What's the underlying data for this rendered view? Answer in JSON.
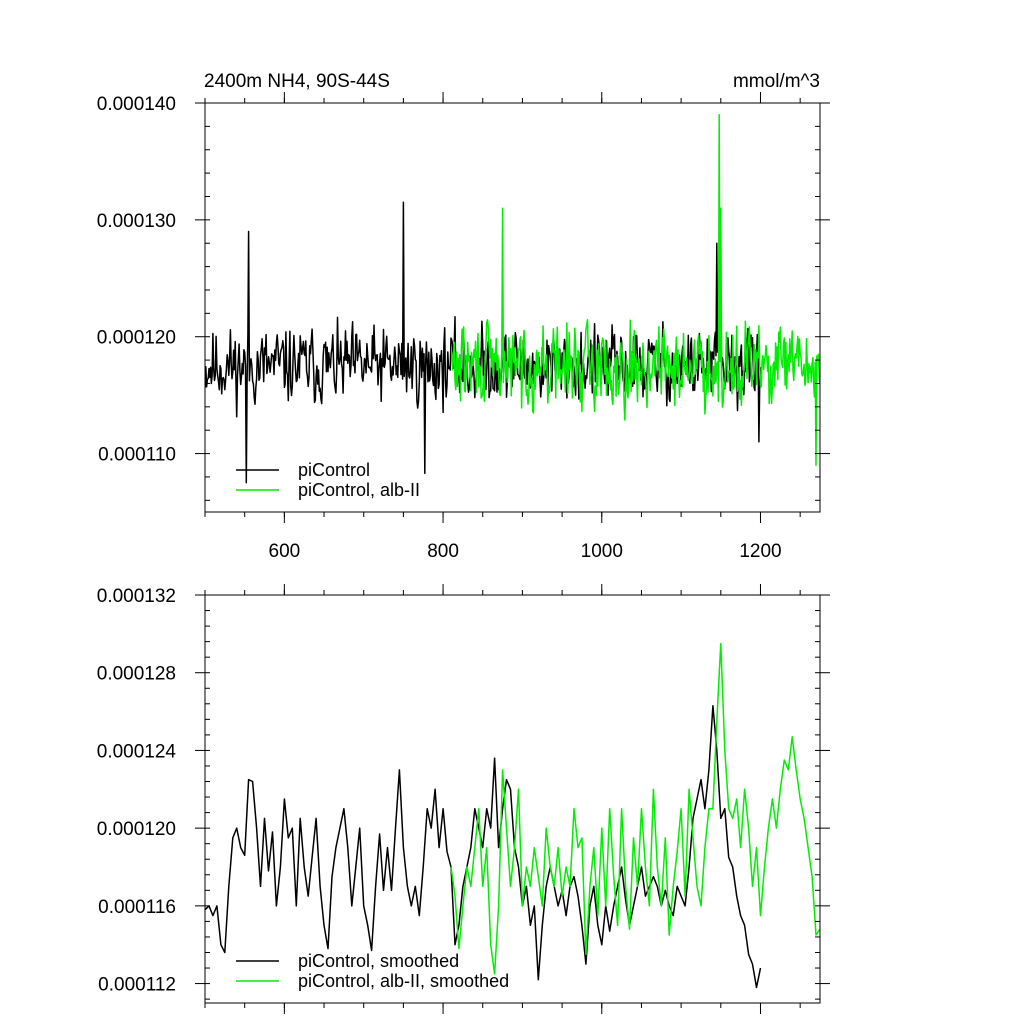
{
  "title_left": "2400m NH4, 90S-44S",
  "title_right": "mmol/m^3",
  "colors": {
    "control": "#000000",
    "alb": "#00ee00",
    "frame": "#000000"
  },
  "chart_data": [
    {
      "type": "line",
      "title": "2400m NH4, 90S-44S",
      "units": "mmol/m^3",
      "xlim": [
        500,
        1275
      ],
      "ylim": [
        0.000105,
        0.00014
      ],
      "xticks": [
        600,
        800,
        1000,
        1200
      ],
      "xtick_labels": [
        "600",
        "800",
        "1000",
        "1200"
      ],
      "yticks": [
        0.00011,
        0.00012,
        0.00013,
        0.00014
      ],
      "ytick_labels": [
        "0.000110",
        "0.000120",
        "0.000130",
        "0.000140"
      ],
      "legend_position": "bottom-left",
      "series": [
        {
          "name": "piControl",
          "color": "#000000",
          "x_start": 500,
          "x_end": 1200,
          "mean": 0.0001175,
          "amplitude": 2.8e-06,
          "seed": 11,
          "keypoints": [
            [
              552,
              0.0001075
            ],
            [
              555,
              0.000129
            ],
            [
              750,
              0.0001315
            ],
            [
              777,
              0.0001083
            ],
            [
              1145,
              0.000128
            ],
            [
              1150,
              0.000124
            ],
            [
              1198,
              0.000111
            ]
          ]
        },
        {
          "name": "piControl, alb-II",
          "color": "#00ee00",
          "x_start": 810,
          "x_end": 1275,
          "mean": 0.0001175,
          "amplitude": 3e-06,
          "seed": 29,
          "keypoints": [
            [
              875,
              0.000131
            ],
            [
              1148,
              0.000139
            ],
            [
              1150,
              0.000131
            ],
            [
              1270,
              0.000109
            ]
          ]
        }
      ]
    },
    {
      "type": "line",
      "xlim": [
        500,
        1275
      ],
      "ylim": [
        0.000111,
        0.000132
      ],
      "xticks": [
        600,
        800,
        1000,
        1200
      ],
      "yticks": [
        0.000112,
        0.000116,
        0.00012,
        0.000124,
        0.000128,
        0.000132
      ],
      "ytick_labels": [
        "0.000112",
        "0.000116",
        "0.000120",
        "0.000124",
        "0.000128",
        "0.000132"
      ],
      "legend_position": "bottom-left",
      "series": [
        {
          "name": "piControl, smoothed",
          "color": "#000000",
          "x_start": 500,
          "x_end": 1200,
          "points": [
            [
              500,
              0.0001158
            ],
            [
              505,
              0.000116
            ],
            [
              510,
              0.0001155
            ],
            [
              515,
              0.000116
            ],
            [
              520,
              0.000114
            ],
            [
              525,
              0.0001136
            ],
            [
              530,
              0.000117
            ],
            [
              535,
              0.0001195
            ],
            [
              540,
              0.00012
            ],
            [
              545,
              0.000119
            ],
            [
              550,
              0.0001186
            ],
            [
              555,
              0.0001225
            ],
            [
              560,
              0.0001224
            ],
            [
              565,
              0.00012
            ],
            [
              570,
              0.000117
            ],
            [
              575,
              0.0001205
            ],
            [
              580,
              0.0001178
            ],
            [
              585,
              0.0001198
            ],
            [
              590,
              0.000116
            ],
            [
              595,
              0.000118
            ],
            [
              600,
              0.0001215
            ],
            [
              605,
              0.0001195
            ],
            [
              610,
              0.00012
            ],
            [
              615,
              0.000116
            ],
            [
              620,
              0.0001205
            ],
            [
              625,
              0.000118
            ],
            [
              630,
              0.0001165
            ],
            [
              635,
              0.0001185
            ],
            [
              640,
              0.0001205
            ],
            [
              645,
              0.000117
            ],
            [
              650,
              0.000115
            ],
            [
              655,
              0.0001138
            ],
            [
              660,
              0.0001175
            ],
            [
              665,
              0.000119
            ],
            [
              670,
              0.00012
            ],
            [
              675,
              0.000121
            ],
            [
              680,
              0.000119
            ],
            [
              685,
              0.000116
            ],
            [
              690,
              0.000118
            ],
            [
              695,
              0.00012
            ],
            [
              700,
              0.000116
            ],
            [
              705,
              0.000115
            ],
            [
              710,
              0.0001137
            ],
            [
              715,
              0.000117
            ],
            [
              720,
              0.0001197
            ],
            [
              725,
              0.0001168
            ],
            [
              730,
              0.000119
            ],
            [
              735,
              0.0001168
            ],
            [
              740,
              0.00012
            ],
            [
              745,
              0.000123
            ],
            [
              750,
              0.000119
            ],
            [
              755,
              0.000117
            ],
            [
              760,
              0.000116
            ],
            [
              765,
              0.000117
            ],
            [
              770,
              0.0001155
            ],
            [
              775,
              0.000118
            ],
            [
              780,
              0.000121
            ],
            [
              785,
              0.00012
            ],
            [
              790,
              0.000122
            ],
            [
              795,
              0.000119
            ],
            [
              800,
              0.000121
            ],
            [
              805,
              0.0001188
            ],
            [
              810,
              0.000118
            ],
            [
              815,
              0.000114
            ],
            [
              820,
              0.000115
            ],
            [
              825,
              0.000117
            ],
            [
              830,
              0.000118
            ],
            [
              835,
              0.000119
            ],
            [
              840,
              0.000121
            ],
            [
              845,
              0.00012
            ],
            [
              850,
              0.000119
            ],
            [
              855,
              0.000121
            ],
            [
              860,
              0.00012
            ],
            [
              865,
              0.0001236
            ],
            [
              870,
              0.000119
            ],
            [
              875,
              0.000121
            ],
            [
              880,
              0.0001225
            ],
            [
              885,
              0.000122
            ],
            [
              890,
              0.000119
            ],
            [
              895,
              0.000118
            ],
            [
              900,
              0.000116
            ],
            [
              905,
              0.000117
            ],
            [
              910,
              0.000115
            ],
            [
              915,
              0.000116
            ],
            [
              920,
              0.0001122
            ],
            [
              925,
              0.000115
            ],
            [
              930,
              0.000117
            ],
            [
              935,
              0.000118
            ],
            [
              940,
              0.000117
            ],
            [
              945,
              0.000116
            ],
            [
              950,
              0.0001168
            ],
            [
              955,
              0.0001155
            ],
            [
              960,
              0.000117
            ],
            [
              965,
              0.0001175
            ],
            [
              970,
              0.0001165
            ],
            [
              975,
              0.000115
            ],
            [
              980,
              0.000113
            ],
            [
              985,
              0.000116
            ],
            [
              990,
              0.000117
            ],
            [
              995,
              0.000115
            ],
            [
              1000,
              0.000114
            ],
            [
              1005,
              0.000116
            ],
            [
              1010,
              0.0001147
            ],
            [
              1015,
              0.000116
            ],
            [
              1020,
              0.000117
            ],
            [
              1025,
              0.000118
            ],
            [
              1030,
              0.0001163
            ],
            [
              1035,
              0.000115
            ],
            [
              1040,
              0.000116
            ],
            [
              1045,
              0.000117
            ],
            [
              1050,
              0.000118
            ],
            [
              1055,
              0.0001165
            ],
            [
              1060,
              0.000117
            ],
            [
              1065,
              0.0001175
            ],
            [
              1070,
              0.000117
            ],
            [
              1075,
              0.000116
            ],
            [
              1080,
              0.0001168
            ],
            [
              1085,
              0.000116
            ],
            [
              1090,
              0.0001155
            ],
            [
              1095,
              0.000117
            ],
            [
              1100,
              0.0001165
            ],
            [
              1105,
              0.000116
            ],
            [
              1110,
              0.000118
            ],
            [
              1115,
              0.0001205
            ],
            [
              1120,
              0.0001215
            ],
            [
              1125,
              0.0001225
            ],
            [
              1130,
              0.000121
            ],
            [
              1135,
              0.000123
            ],
            [
              1140,
              0.0001263
            ],
            [
              1145,
              0.000124
            ],
            [
              1150,
              0.0001205
            ],
            [
              1155,
              0.000121
            ],
            [
              1160,
              0.0001185
            ],
            [
              1165,
              0.000118
            ],
            [
              1170,
              0.0001165
            ],
            [
              1175,
              0.0001155
            ],
            [
              1180,
              0.000115
            ],
            [
              1185,
              0.0001135
            ],
            [
              1190,
              0.000113
            ],
            [
              1195,
              0.0001118
            ],
            [
              1200,
              0.0001128
            ]
          ]
        },
        {
          "name": "piControl, alb-II, smoothed",
          "color": "#00ee00",
          "x_start": 810,
          "x_end": 1275,
          "points": [
            [
              810,
              0.000118
            ],
            [
              815,
              0.0001165
            ],
            [
              820,
              0.0001138
            ],
            [
              825,
              0.000116
            ],
            [
              830,
              0.000118
            ],
            [
              835,
              0.000117
            ],
            [
              840,
              0.000119
            ],
            [
              845,
              0.000121
            ],
            [
              850,
              0.000117
            ],
            [
              855,
              0.000119
            ],
            [
              860,
              0.000114
            ],
            [
              865,
              0.0001125
            ],
            [
              870,
              0.000116
            ],
            [
              875,
              0.000123
            ],
            [
              880,
              0.00012
            ],
            [
              885,
              0.000117
            ],
            [
              890,
              0.000119
            ],
            [
              895,
              0.000122
            ],
            [
              900,
              0.000116
            ],
            [
              905,
              0.000118
            ],
            [
              910,
              0.000117
            ],
            [
              915,
              0.000119
            ],
            [
              920,
              0.0001175
            ],
            [
              925,
              0.000116
            ],
            [
              930,
              0.00012
            ],
            [
              935,
              0.000118
            ],
            [
              940,
              0.000117
            ],
            [
              945,
              0.000119
            ],
            [
              950,
              0.0001165
            ],
            [
              955,
              0.000118
            ],
            [
              960,
              0.000117
            ],
            [
              965,
              0.000121
            ],
            [
              970,
              0.000119
            ],
            [
              975,
              0.0001195
            ],
            [
              980,
              0.0001135
            ],
            [
              985,
              0.000117
            ],
            [
              990,
              0.000119
            ],
            [
              995,
              0.0001155
            ],
            [
              1000,
              0.00012
            ],
            [
              1005,
              0.000116
            ],
            [
              1010,
              0.000121
            ],
            [
              1015,
              0.0001175
            ],
            [
              1020,
              0.000115
            ],
            [
              1025,
              0.000121
            ],
            [
              1030,
              0.000117
            ],
            [
              1035,
              0.0001148
            ],
            [
              1040,
              0.0001195
            ],
            [
              1045,
              0.000117
            ],
            [
              1050,
              0.000121
            ],
            [
              1055,
              0.000118
            ],
            [
              1060,
              0.000116
            ],
            [
              1065,
              0.000122
            ],
            [
              1070,
              0.000118
            ],
            [
              1075,
              0.000116
            ],
            [
              1080,
              0.0001195
            ],
            [
              1085,
              0.0001145
            ],
            [
              1090,
              0.000117
            ],
            [
              1095,
              0.0001188
            ],
            [
              1100,
              0.000121
            ],
            [
              1105,
              0.0001165
            ],
            [
              1110,
              0.000122
            ],
            [
              1115,
              0.0001195
            ],
            [
              1120,
              0.000117
            ],
            [
              1125,
              0.000116
            ],
            [
              1130,
              0.000119
            ],
            [
              1135,
              0.000121
            ],
            [
              1140,
              0.000121
            ],
            [
              1145,
              0.0001255
            ],
            [
              1150,
              0.0001295
            ],
            [
              1155,
              0.000124
            ],
            [
              1160,
              0.000121
            ],
            [
              1165,
              0.0001205
            ],
            [
              1170,
              0.0001215
            ],
            [
              1175,
              0.000119
            ],
            [
              1180,
              0.000122
            ],
            [
              1185,
              0.00012
            ],
            [
              1190,
              0.000117
            ],
            [
              1195,
              0.000119
            ],
            [
              1200,
              0.0001155
            ],
            [
              1205,
              0.000118
            ],
            [
              1210,
              0.00012
            ],
            [
              1215,
              0.0001215
            ],
            [
              1220,
              0.00012
            ],
            [
              1225,
              0.000122
            ],
            [
              1230,
              0.0001235
            ],
            [
              1235,
              0.000123
            ],
            [
              1240,
              0.0001247
            ],
            [
              1245,
              0.000123
            ],
            [
              1250,
              0.0001215
            ],
            [
              1255,
              0.0001205
            ],
            [
              1260,
              0.000119
            ],
            [
              1265,
              0.0001175
            ],
            [
              1270,
              0.0001145
            ],
            [
              1275,
              0.0001148
            ]
          ]
        }
      ]
    }
  ]
}
